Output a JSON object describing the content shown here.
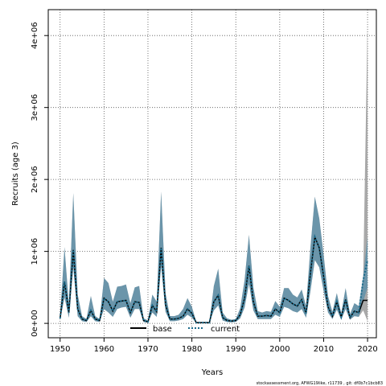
{
  "chart_data": {
    "type": "line",
    "title": "",
    "xlabel": "Years",
    "ylabel": "Recruits (age 3)",
    "xlim": [
      1947.3,
      2022
    ],
    "ylim": [
      -200000,
      4360000
    ],
    "x_ticks": [
      1950,
      1960,
      1970,
      1980,
      1990,
      2000,
      2010,
      2020
    ],
    "x_tick_labels": [
      "1950",
      "1960",
      "1970",
      "1980",
      "1990",
      "2000",
      "2010",
      "2020"
    ],
    "y_ticks": [
      0,
      1000000,
      2000000,
      3000000,
      4000000
    ],
    "y_tick_labels": [
      "0e+00",
      "1e+06",
      "2e+06",
      "3e+06",
      "4e+06"
    ],
    "grid": true,
    "legend_position": "bottom-center",
    "x": [
      1950,
      1951,
      1952,
      1953,
      1954,
      1955,
      1956,
      1957,
      1958,
      1959,
      1960,
      1961,
      1962,
      1963,
      1964,
      1965,
      1966,
      1967,
      1968,
      1969,
      1970,
      1971,
      1972,
      1973,
      1974,
      1975,
      1976,
      1977,
      1978,
      1979,
      1980,
      1981,
      1982,
      1983,
      1984,
      1985,
      1986,
      1987,
      1988,
      1989,
      1990,
      1991,
      1992,
      1993,
      1994,
      1995,
      1996,
      1997,
      1998,
      1999,
      2000,
      2001,
      2002,
      2003,
      2004,
      2005,
      2006,
      2007,
      2008,
      2009,
      2010,
      2011,
      2012,
      2013,
      2014,
      2015,
      2016,
      2017,
      2018,
      2019,
      2020
    ],
    "series": [
      {
        "name": "base",
        "color": "#000000",
        "line_style": "solid",
        "band_color": "#a0a0a0",
        "values": [
          70000,
          580000,
          150000,
          1020000,
          200000,
          60000,
          40000,
          180000,
          60000,
          40000,
          350000,
          300000,
          170000,
          300000,
          310000,
          320000,
          150000,
          300000,
          290000,
          40000,
          20000,
          250000,
          160000,
          1050000,
          260000,
          60000,
          60000,
          70000,
          100000,
          200000,
          140000,
          10000,
          10000,
          10000,
          10000,
          300000,
          390000,
          80000,
          40000,
          30000,
          40000,
          120000,
          350000,
          800000,
          300000,
          100000,
          100000,
          110000,
          100000,
          200000,
          150000,
          350000,
          320000,
          270000,
          240000,
          330000,
          140000,
          700000,
          1200000,
          1050000,
          650000,
          230000,
          100000,
          300000,
          90000,
          330000,
          80000,
          170000,
          150000,
          320000,
          320000
        ],
        "lower": [
          40000,
          360000,
          80000,
          780000,
          100000,
          30000,
          20000,
          100000,
          30000,
          20000,
          200000,
          150000,
          90000,
          200000,
          220000,
          230000,
          80000,
          200000,
          200000,
          20000,
          10000,
          150000,
          90000,
          800000,
          160000,
          30000,
          30000,
          40000,
          60000,
          120000,
          80000,
          5000,
          5000,
          5000,
          5000,
          180000,
          250000,
          40000,
          20000,
          15000,
          20000,
          70000,
          220000,
          550000,
          180000,
          60000,
          60000,
          60000,
          60000,
          120000,
          90000,
          230000,
          210000,
          170000,
          150000,
          200000,
          80000,
          450000,
          880000,
          780000,
          450000,
          150000,
          60000,
          190000,
          50000,
          200000,
          50000,
          100000,
          90000,
          180000,
          30000
        ],
        "upper": [
          100000,
          1060000,
          260000,
          1810000,
          400000,
          100000,
          60000,
          380000,
          100000,
          60000,
          630000,
          560000,
          300000,
          510000,
          520000,
          540000,
          280000,
          500000,
          520000,
          70000,
          40000,
          400000,
          300000,
          1830000,
          420000,
          100000,
          100000,
          120000,
          200000,
          350000,
          230000,
          20000,
          20000,
          20000,
          20000,
          520000,
          760000,
          150000,
          70000,
          50000,
          60000,
          210000,
          600000,
          1230000,
          500000,
          170000,
          150000,
          170000,
          160000,
          310000,
          230000,
          490000,
          490000,
          400000,
          360000,
          470000,
          240000,
          1060000,
          1760000,
          1460000,
          950000,
          380000,
          160000,
          420000,
          140000,
          490000,
          130000,
          280000,
          240000,
          630000,
          4190000
        ]
      },
      {
        "name": "current",
        "color": "#1a6a8a",
        "line_style": "dotted",
        "band_color": "#4a8aaa",
        "values": [
          70000,
          580000,
          150000,
          1020000,
          200000,
          60000,
          40000,
          180000,
          60000,
          40000,
          350000,
          300000,
          170000,
          300000,
          310000,
          320000,
          150000,
          300000,
          290000,
          40000,
          20000,
          250000,
          160000,
          1050000,
          260000,
          60000,
          60000,
          70000,
          100000,
          200000,
          140000,
          10000,
          10000,
          10000,
          10000,
          300000,
          390000,
          80000,
          40000,
          30000,
          40000,
          120000,
          350000,
          800000,
          300000,
          100000,
          100000,
          110000,
          100000,
          200000,
          150000,
          350000,
          320000,
          270000,
          240000,
          330000,
          140000,
          700000,
          1200000,
          1050000,
          650000,
          230000,
          100000,
          300000,
          90000,
          330000,
          80000,
          170000,
          150000,
          600000,
          880000
        ],
        "lower": [
          40000,
          360000,
          80000,
          780000,
          100000,
          30000,
          20000,
          100000,
          30000,
          20000,
          200000,
          150000,
          90000,
          200000,
          220000,
          230000,
          80000,
          200000,
          200000,
          20000,
          10000,
          150000,
          90000,
          800000,
          160000,
          30000,
          30000,
          40000,
          60000,
          120000,
          80000,
          5000,
          5000,
          5000,
          5000,
          180000,
          250000,
          40000,
          20000,
          15000,
          20000,
          70000,
          220000,
          550000,
          180000,
          60000,
          60000,
          60000,
          60000,
          120000,
          90000,
          230000,
          210000,
          170000,
          150000,
          200000,
          80000,
          450000,
          880000,
          780000,
          450000,
          150000,
          60000,
          190000,
          50000,
          200000,
          50000,
          100000,
          90000,
          300000,
          500000
        ],
        "upper": [
          100000,
          1060000,
          260000,
          1810000,
          400000,
          100000,
          60000,
          380000,
          100000,
          60000,
          630000,
          560000,
          300000,
          510000,
          520000,
          540000,
          280000,
          500000,
          520000,
          70000,
          40000,
          400000,
          300000,
          1830000,
          420000,
          100000,
          100000,
          120000,
          200000,
          350000,
          230000,
          20000,
          20000,
          20000,
          20000,
          520000,
          760000,
          150000,
          70000,
          50000,
          60000,
          210000,
          600000,
          1230000,
          500000,
          170000,
          150000,
          170000,
          160000,
          310000,
          230000,
          490000,
          490000,
          400000,
          360000,
          470000,
          240000,
          1060000,
          1760000,
          1460000,
          950000,
          380000,
          160000,
          420000,
          140000,
          490000,
          130000,
          280000,
          240000,
          650000,
          1200000
        ]
      }
    ],
    "footnote": "stockassessment.org, AFWG19like, r11739 , git: df0b7c1bcb83"
  }
}
